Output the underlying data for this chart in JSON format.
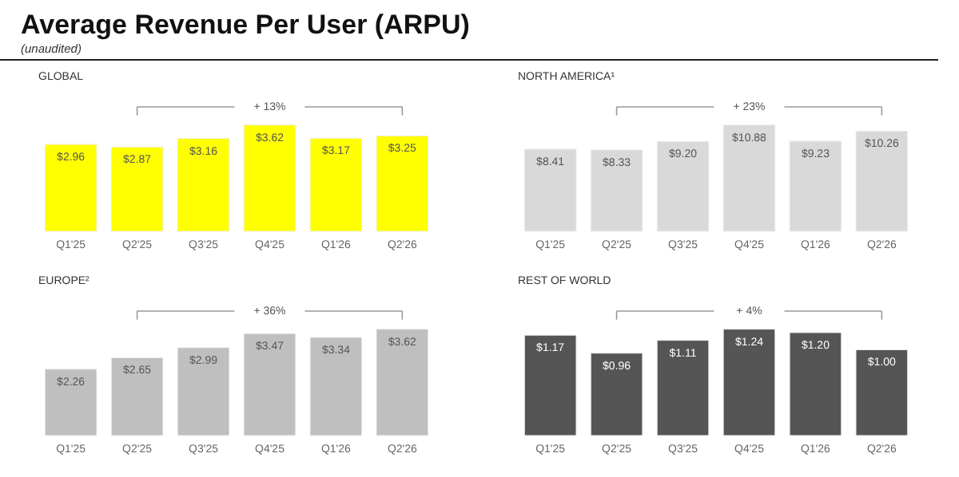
{
  "chart_data": [
    {
      "type": "other",
      "title": "Average Revenue Per User (ARPU)",
      "subtitle": "(unaudited)"
    },
    {
      "type": "bar",
      "title": "GLOBAL",
      "categories": [
        "Q1'25",
        "Q2'25",
        "Q3'25",
        "Q4'25",
        "Q1'26",
        "Q2'26"
      ],
      "values": [
        2.96,
        2.87,
        3.16,
        3.62,
        3.17,
        3.25
      ],
      "value_labels": [
        "$2.96",
        "$2.87",
        "$3.16",
        "$3.62",
        "$3.17",
        "$3.25"
      ],
      "color": "#ffff00",
      "annotations": [
        "+ 13%"
      ]
    },
    {
      "type": "bar",
      "title": "NORTH AMERICA¹",
      "categories": [
        "Q1'25",
        "Q2'25",
        "Q3'25",
        "Q4'25",
        "Q1'26",
        "Q2'26"
      ],
      "values": [
        8.41,
        8.33,
        9.2,
        10.88,
        9.23,
        10.26
      ],
      "value_labels": [
        "$8.41",
        "$8.33",
        "$9.20",
        "$10.88",
        "$9.23",
        "$10.26"
      ],
      "color": "#d9d9d9",
      "annotations": [
        "+ 23%"
      ]
    },
    {
      "type": "bar",
      "title": "EUROPE²",
      "categories": [
        "Q1'25",
        "Q2'25",
        "Q3'25",
        "Q4'25",
        "Q1'26",
        "Q2'26"
      ],
      "values": [
        2.26,
        2.65,
        2.99,
        3.47,
        3.34,
        3.62
      ],
      "value_labels": [
        "$2.26",
        "$2.65",
        "$2.99",
        "$3.47",
        "$3.34",
        "$3.62"
      ],
      "color": "#bfbfbf",
      "annotations": [
        "+ 36%"
      ]
    },
    {
      "type": "bar",
      "title": "REST OF WORLD",
      "categories": [
        "Q1'25",
        "Q2'25",
        "Q3'25",
        "Q4'25",
        "Q1'26",
        "Q2'26"
      ],
      "values": [
        1.17,
        0.96,
        1.11,
        1.24,
        1.2,
        1.0
      ],
      "value_labels": [
        "$1.17",
        "$0.96",
        "$1.11",
        "$1.24",
        "$1.20",
        "$1.00"
      ],
      "color": "#555555",
      "annotations": [
        "+ 4%"
      ]
    }
  ]
}
